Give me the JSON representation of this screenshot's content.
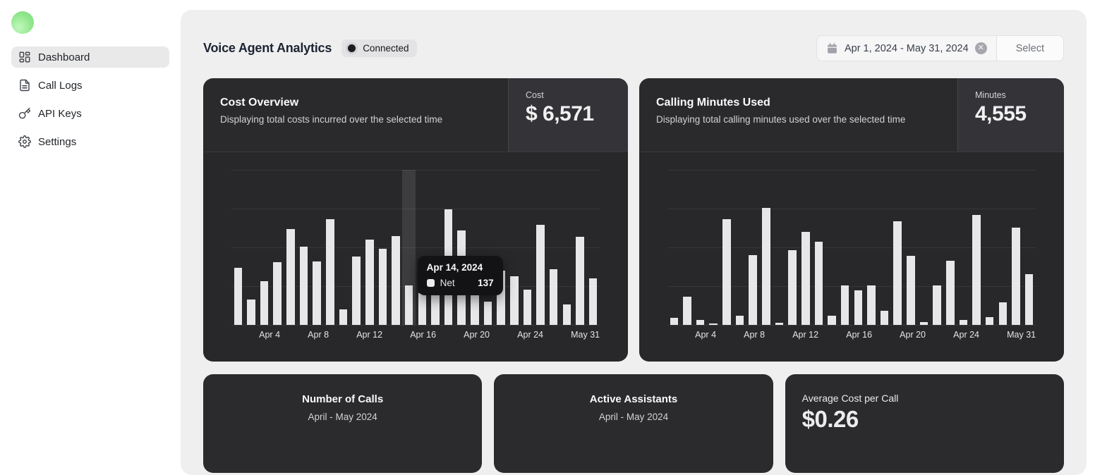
{
  "sidebar": {
    "items": [
      {
        "label": "Dashboard",
        "icon": "dashboard-grid-icon",
        "active": true
      },
      {
        "label": "Call Logs",
        "icon": "call-logs-icon",
        "active": false
      },
      {
        "label": "API Keys",
        "icon": "api-keys-icon",
        "active": false
      },
      {
        "label": "Settings",
        "icon": "settings-gear-icon",
        "active": false
      }
    ]
  },
  "header": {
    "title": "Voice Agent Analytics",
    "status_badge": "Connected",
    "date_range": "Apr 1, 2024 - May 31, 2024",
    "select_label": "Select"
  },
  "cost_card": {
    "title": "Cost Overview",
    "subtitle": "Displaying total costs incurred over the selected time",
    "stat_label": "Cost",
    "stat_value": "$ 6,571"
  },
  "minutes_card": {
    "title": "Calling Minutes Used",
    "subtitle": "Displaying total calling minutes used over the selected time",
    "stat_label": "Minutes",
    "stat_value": "4,555"
  },
  "tooltip": {
    "date": "Apr 14, 2024",
    "series": "Net",
    "value": "137"
  },
  "bottom_cards": {
    "calls": {
      "title": "Number of Calls",
      "subtitle": "April - May 2024"
    },
    "assistants": {
      "title": "Active Assistants",
      "subtitle": "April - May 2024"
    },
    "avg_cost": {
      "title": "Average Cost per Call",
      "value": "$0.26"
    }
  },
  "colors": {
    "panel_bg": "#efeff0",
    "card_bg": "#2a2a2d",
    "chart_bg": "#28282b",
    "stat_box_bg": "#343438",
    "bar_color": "#e7e7e9",
    "tooltip_bg": "#131316",
    "logo_green": "#8ee68b",
    "badge_bg": "#e3e3e6"
  },
  "chart_data": [
    {
      "type": "bar",
      "title": "Cost Overview (daily cost, $)",
      "total_displayed": 6571,
      "x_tick_labels": [
        "Apr 4",
        "Apr 8",
        "Apr 12",
        "Apr 16",
        "Apr 20",
        "Apr 24",
        "May 31"
      ],
      "tick_slot_indices": [
        3,
        7,
        11,
        15,
        19,
        23,
        27
      ],
      "values": [
        200,
        88,
        151,
        218,
        335,
        272,
        220,
        369,
        55,
        237,
        296,
        264,
        309,
        137,
        110,
        190,
        402,
        328,
        180,
        81,
        190,
        170,
        123,
        349,
        194,
        71,
        308,
        161
      ],
      "values_note": "estimated from bar heights; Apr 14 = 137 confirmed by tooltip",
      "ylim": [
        0,
        540
      ],
      "grid": true,
      "highlighted_index": 13,
      "tooltip": {
        "date": "Apr 14, 2024",
        "series": "Net",
        "value": 137
      }
    },
    {
      "type": "bar",
      "title": "Calling Minutes Used (daily minutes)",
      "total_displayed": 4555,
      "x_tick_labels": [
        "Apr 4",
        "Apr 8",
        "Apr 12",
        "Apr 16",
        "Apr 20",
        "Apr 24",
        "May 31"
      ],
      "tick_slot_indices": [
        3,
        7,
        11,
        15,
        19,
        23,
        27
      ],
      "values": [
        24,
        97,
        18,
        5,
        369,
        32,
        243,
        407,
        7,
        259,
        324,
        290,
        32,
        137,
        120,
        137,
        48,
        362,
        241,
        9,
        138,
        223,
        18,
        384,
        26,
        78,
        338,
        177
      ],
      "values_note": "estimated from bar heights",
      "ylim": [
        0,
        540
      ],
      "grid": true,
      "highlighted_index": null
    }
  ]
}
